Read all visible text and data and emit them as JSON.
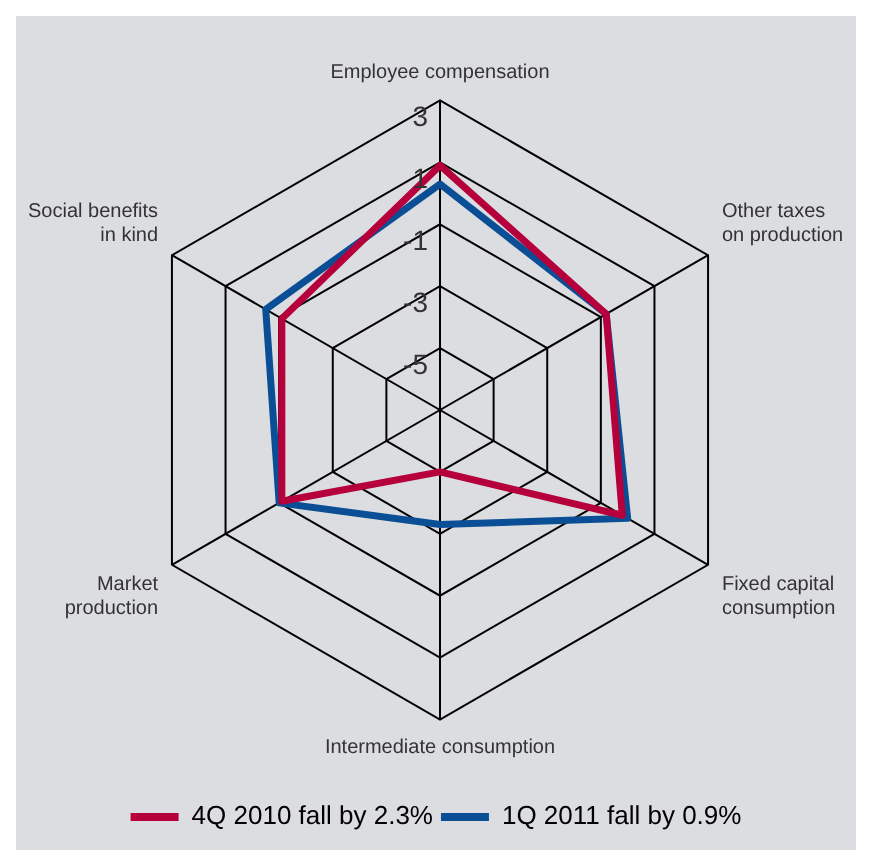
{
  "chart_data": {
    "type": "radar",
    "categories": [
      "Employee compensation",
      "Other taxes on production",
      "Fixed capital consumption",
      "Intermediate consumption",
      "Market production",
      "Social benefits in kind"
    ],
    "series": [
      {
        "name": "4Q 2010 fall by 2.3%",
        "color": "#b5003c",
        "values": [
          0.9,
          -0.8,
          -0.2,
          -5.0,
          -1.1,
          -1.1
        ]
      },
      {
        "name": "1Q 2011 fall by 0.9%",
        "color": "#0a4f96",
        "values": [
          0.3,
          -0.8,
          0.0,
          -3.3,
          -1.0,
          -0.5
        ]
      }
    ],
    "ylim": [
      -7,
      3
    ],
    "yticks": [
      -5,
      -3,
      -1,
      1,
      3
    ],
    "grid": true,
    "legend": "bottom",
    "marker": "none"
  }
}
